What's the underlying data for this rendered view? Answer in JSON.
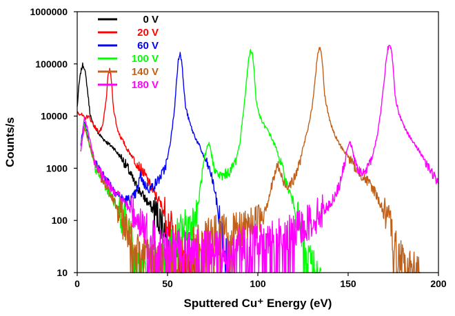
{
  "chart_data": {
    "type": "line",
    "title": "",
    "xlabel": "Sputtered Cu⁺ Energy (eV)",
    "ylabel": "Counts/s",
    "xlim": [
      0,
      200
    ],
    "ylim": [
      10,
      1000000
    ],
    "yscale": "log",
    "grid": false,
    "legend_placement": "top-left",
    "x_ticks": [
      0,
      50,
      100,
      150,
      200
    ],
    "x_tick_labels": [
      "0",
      "50",
      "100",
      "150",
      "200"
    ],
    "y_ticks": [
      10,
      100,
      1000,
      10000,
      100000,
      1000000
    ],
    "y_tick_labels": [
      "10",
      "100",
      "1000",
      "10000",
      "100000",
      "1000000"
    ],
    "series": [
      {
        "name": "0 V",
        "color": "#000000",
        "points": [
          [
            0,
            15000
          ],
          [
            1,
            40000
          ],
          [
            2,
            70000
          ],
          [
            3,
            95000
          ],
          [
            4,
            85000
          ],
          [
            5,
            50000
          ],
          [
            6,
            25000
          ],
          [
            7,
            12000
          ],
          [
            8,
            8000
          ],
          [
            10,
            6000
          ],
          [
            12,
            4500
          ],
          [
            15,
            3500
          ],
          [
            18,
            2800
          ],
          [
            20,
            2500
          ],
          [
            22,
            2000
          ],
          [
            25,
            1500
          ],
          [
            28,
            1000
          ],
          [
            30,
            700
          ],
          [
            32,
            500
          ],
          [
            35,
            350
          ],
          [
            38,
            250
          ],
          [
            40,
            200
          ],
          [
            42,
            160
          ],
          [
            45,
            120
          ],
          [
            48,
            80
          ],
          [
            50,
            50
          ],
          [
            52,
            35
          ],
          [
            55,
            20
          ],
          [
            58,
            12
          ],
          [
            60,
            10
          ]
        ]
      },
      {
        "name": "20 V",
        "color": "#ff0000",
        "points": [
          [
            0,
            12000
          ],
          [
            2,
            11000
          ],
          [
            4,
            9000
          ],
          [
            6,
            10000
          ],
          [
            8,
            8000
          ],
          [
            10,
            6000
          ],
          [
            12,
            5000
          ],
          [
            14,
            6000
          ],
          [
            16,
            20000
          ],
          [
            17,
            55000
          ],
          [
            18,
            80000
          ],
          [
            19,
            45000
          ],
          [
            20,
            15000
          ],
          [
            22,
            6000
          ],
          [
            24,
            4000
          ],
          [
            26,
            3000
          ],
          [
            28,
            2200
          ],
          [
            30,
            1800
          ],
          [
            32,
            1400
          ],
          [
            35,
            1000
          ],
          [
            38,
            700
          ],
          [
            40,
            500
          ],
          [
            42,
            350
          ],
          [
            45,
            250
          ],
          [
            48,
            150
          ],
          [
            50,
            100
          ],
          [
            55,
            40
          ],
          [
            60,
            20
          ],
          [
            65,
            10
          ]
        ]
      },
      {
        "name": "60 V",
        "color": "#0000ff",
        "points": [
          [
            2,
            3000
          ],
          [
            4,
            8000
          ],
          [
            6,
            4000
          ],
          [
            8,
            2000
          ],
          [
            10,
            1200
          ],
          [
            15,
            700
          ],
          [
            20,
            400
          ],
          [
            25,
            250
          ],
          [
            30,
            250
          ],
          [
            33,
            350
          ],
          [
            35,
            750
          ],
          [
            37,
            500
          ],
          [
            40,
            400
          ],
          [
            42,
            450
          ],
          [
            45,
            600
          ],
          [
            48,
            900
          ],
          [
            50,
            1500
          ],
          [
            52,
            4000
          ],
          [
            54,
            15000
          ],
          [
            55,
            50000
          ],
          [
            56,
            120000
          ],
          [
            57,
            170000
          ],
          [
            58,
            100000
          ],
          [
            59,
            35000
          ],
          [
            60,
            15000
          ],
          [
            62,
            8000
          ],
          [
            64,
            5000
          ],
          [
            66,
            3500
          ],
          [
            68,
            2500
          ],
          [
            70,
            1700
          ],
          [
            72,
            1200
          ],
          [
            74,
            800
          ],
          [
            76,
            400
          ],
          [
            78,
            150
          ],
          [
            80,
            60
          ],
          [
            82,
            25
          ],
          [
            85,
            10
          ]
        ]
      },
      {
        "name": "100 V",
        "color": "#00ff00",
        "points": [
          [
            2,
            3000
          ],
          [
            4,
            7000
          ],
          [
            6,
            3500
          ],
          [
            8,
            1800
          ],
          [
            10,
            1000
          ],
          [
            15,
            500
          ],
          [
            20,
            250
          ],
          [
            25,
            120
          ],
          [
            30,
            60
          ],
          [
            33,
            15
          ],
          [
            50,
            20
          ],
          [
            55,
            50
          ],
          [
            60,
            80
          ],
          [
            65,
            100
          ],
          [
            67,
            200
          ],
          [
            68,
            400
          ],
          [
            70,
            1200
          ],
          [
            72,
            2500
          ],
          [
            73,
            3000
          ],
          [
            74,
            2200
          ],
          [
            75,
            1300
          ],
          [
            77,
            800
          ],
          [
            80,
            700
          ],
          [
            85,
            900
          ],
          [
            88,
            1500
          ],
          [
            90,
            3000
          ],
          [
            92,
            12000
          ],
          [
            94,
            60000
          ],
          [
            95,
            130000
          ],
          [
            96,
            185000
          ],
          [
            97,
            160000
          ],
          [
            98,
            70000
          ],
          [
            99,
            20000
          ],
          [
            101,
            10000
          ],
          [
            103,
            7000
          ],
          [
            106,
            5000
          ],
          [
            110,
            2500
          ],
          [
            113,
            1200
          ],
          [
            116,
            500
          ],
          [
            120,
            200
          ],
          [
            123,
            80
          ],
          [
            126,
            30
          ],
          [
            130,
            15
          ],
          [
            135,
            12
          ]
        ]
      },
      {
        "name": "140 V",
        "color": "#c0601a",
        "points": [
          [
            2,
            2500
          ],
          [
            4,
            6000
          ],
          [
            6,
            3500
          ],
          [
            8,
            2000
          ],
          [
            10,
            1200
          ],
          [
            15,
            500
          ],
          [
            20,
            250
          ],
          [
            25,
            100
          ],
          [
            30,
            50
          ],
          [
            35,
            25
          ],
          [
            40,
            20
          ],
          [
            50,
            20
          ],
          [
            60,
            30
          ],
          [
            70,
            40
          ],
          [
            75,
            60
          ],
          [
            80,
            60
          ],
          [
            85,
            60
          ],
          [
            90,
            65
          ],
          [
            95,
            80
          ],
          [
            100,
            100
          ],
          [
            105,
            200
          ],
          [
            108,
            500
          ],
          [
            110,
            900
          ],
          [
            111,
            1200
          ],
          [
            112,
            900
          ],
          [
            114,
            550
          ],
          [
            116,
            450
          ],
          [
            120,
            600
          ],
          [
            123,
            1200
          ],
          [
            125,
            2500
          ],
          [
            128,
            6000
          ],
          [
            130,
            15000
          ],
          [
            132,
            60000
          ],
          [
            133,
            150000
          ],
          [
            134,
            210000
          ],
          [
            135,
            180000
          ],
          [
            136,
            80000
          ],
          [
            137,
            25000
          ],
          [
            139,
            11000
          ],
          [
            141,
            6000
          ],
          [
            143,
            4000
          ],
          [
            146,
            2600
          ],
          [
            150,
            1700
          ],
          [
            155,
            900
          ],
          [
            158,
            700
          ],
          [
            162,
            500
          ],
          [
            165,
            350
          ],
          [
            168,
            200
          ],
          [
            172,
            100
          ],
          [
            176,
            40
          ],
          [
            180,
            20
          ],
          [
            185,
            12
          ],
          [
            190,
            10
          ]
        ]
      },
      {
        "name": "180 V",
        "color": "#ff00ff",
        "points": [
          [
            2,
            2000
          ],
          [
            4,
            9000
          ],
          [
            6,
            5000
          ],
          [
            8,
            2500
          ],
          [
            10,
            1200
          ],
          [
            15,
            600
          ],
          [
            20,
            400
          ],
          [
            25,
            250
          ],
          [
            30,
            150
          ],
          [
            35,
            100
          ],
          [
            40,
            50
          ],
          [
            45,
            40
          ],
          [
            50,
            35
          ],
          [
            60,
            30
          ],
          [
            70,
            30
          ],
          [
            80,
            30
          ],
          [
            90,
            35
          ],
          [
            100,
            40
          ],
          [
            110,
            50
          ],
          [
            120,
            60
          ],
          [
            125,
            80
          ],
          [
            130,
            100
          ],
          [
            135,
            150
          ],
          [
            140,
            200
          ],
          [
            145,
            450
          ],
          [
            148,
            1200
          ],
          [
            150,
            2800
          ],
          [
            151,
            3300
          ],
          [
            152,
            2500
          ],
          [
            154,
            1200
          ],
          [
            157,
            800
          ],
          [
            160,
            900
          ],
          [
            163,
            1500
          ],
          [
            166,
            4000
          ],
          [
            168,
            12000
          ],
          [
            170,
            50000
          ],
          [
            171,
            120000
          ],
          [
            172,
            200000
          ],
          [
            173,
            220000
          ],
          [
            174,
            180000
          ],
          [
            175,
            80000
          ],
          [
            176,
            25000
          ],
          [
            178,
            11000
          ],
          [
            181,
            6500
          ],
          [
            185,
            3500
          ],
          [
            190,
            2000
          ],
          [
            195,
            1000
          ],
          [
            200,
            500
          ]
        ]
      }
    ]
  }
}
